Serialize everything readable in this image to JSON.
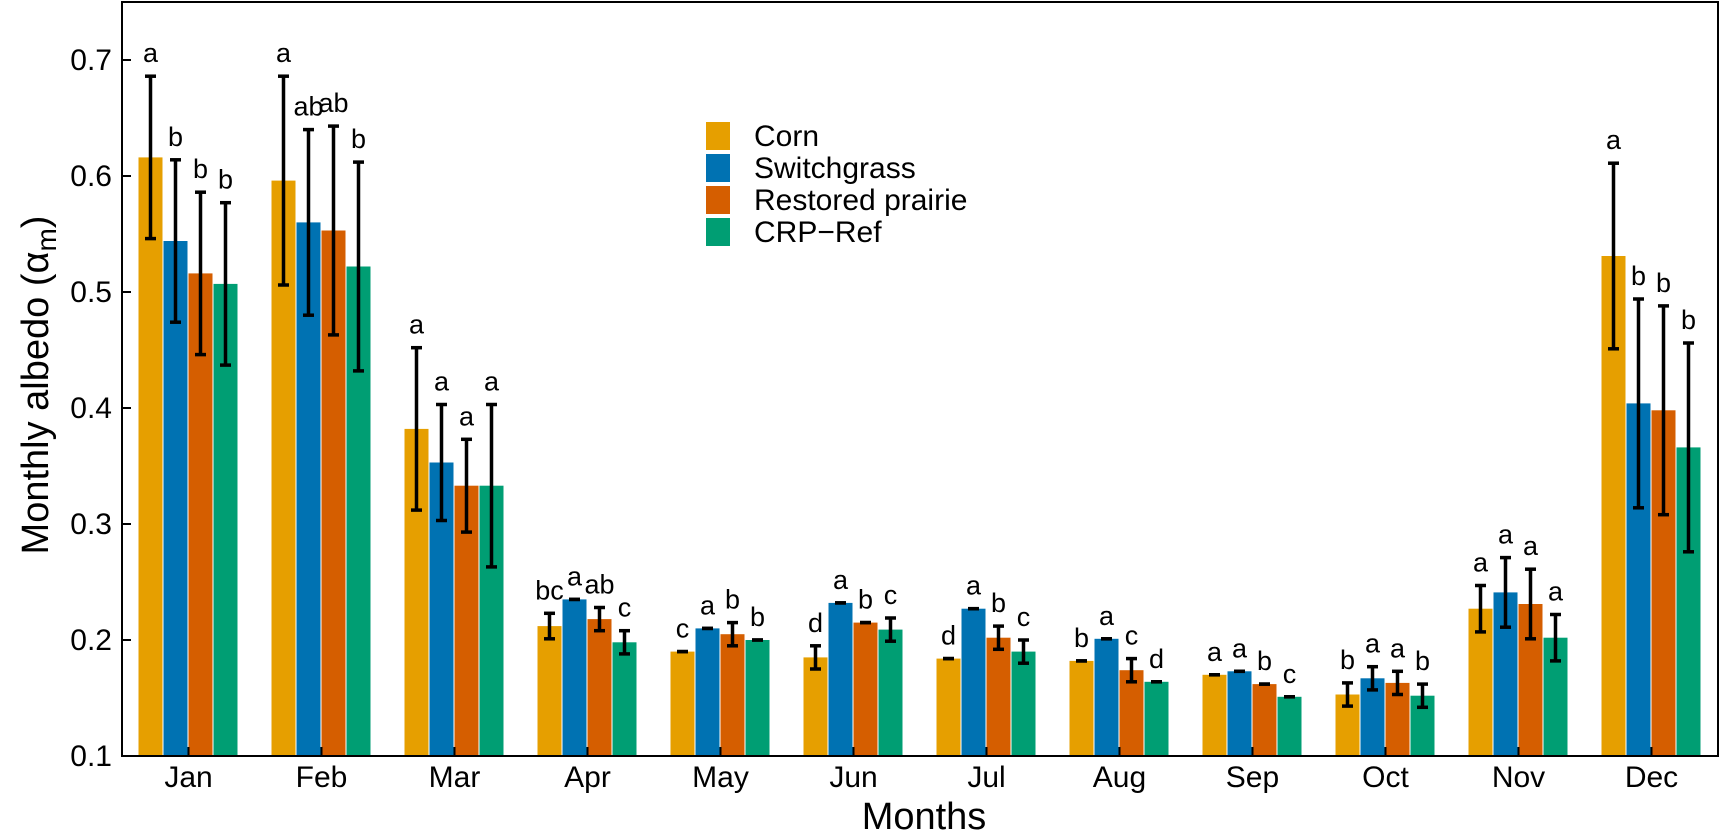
{
  "chart_data": {
    "type": "bar",
    "xlabel": "Months",
    "ylabel": "Monthly albedo (α",
    "ylabel_subscript": "m",
    "ylabel_suffix": ")",
    "ylim": [
      0.1,
      0.75
    ],
    "yticks": [
      "0.1",
      "0.2",
      "0.3",
      "0.4",
      "0.5",
      "0.6",
      "0.7"
    ],
    "grid": false,
    "legend_position": "top-center",
    "categories": [
      "Jan",
      "Feb",
      "Mar",
      "Apr",
      "May",
      "Jun",
      "Jul",
      "Aug",
      "Sep",
      "Oct",
      "Nov",
      "Dec"
    ],
    "series": [
      {
        "name": "Corn",
        "color": "#E69F00",
        "values": [
          0.616,
          0.596,
          0.382,
          0.212,
          0.19,
          0.185,
          0.184,
          0.182,
          0.17,
          0.153,
          0.227,
          0.531
        ],
        "errors": [
          0.07,
          0.09,
          0.07,
          0.011,
          0.0,
          0.01,
          0.0,
          0.0,
          0.0,
          0.01,
          0.02,
          0.08
        ],
        "letters": [
          "a",
          "a",
          "a",
          "bc",
          "c",
          "d",
          "d",
          "b",
          "a",
          "b",
          "a",
          "a"
        ]
      },
      {
        "name": "Switchgrass",
        "color": "#0072B2",
        "values": [
          0.544,
          0.56,
          0.353,
          0.235,
          0.21,
          0.232,
          0.227,
          0.201,
          0.173,
          0.167,
          0.241,
          0.404
        ],
        "errors": [
          0.07,
          0.08,
          0.05,
          0.0,
          0.0,
          0.0,
          0.0,
          0.0,
          0.0,
          0.01,
          0.03,
          0.09
        ],
        "letters": [
          "b",
          "ab",
          "a",
          "a",
          "a",
          "a",
          "a",
          "a",
          "a",
          "a",
          "a",
          "b"
        ]
      },
      {
        "name": "Restored prairie",
        "color": "#D55E00",
        "values": [
          0.516,
          0.553,
          0.333,
          0.218,
          0.205,
          0.215,
          0.202,
          0.174,
          0.162,
          0.163,
          0.231,
          0.398
        ],
        "errors": [
          0.07,
          0.09,
          0.04,
          0.01,
          0.01,
          0.0,
          0.01,
          0.01,
          0.0,
          0.01,
          0.03,
          0.09
        ],
        "letters": [
          "b",
          "ab",
          "a",
          "ab",
          "b",
          "b",
          "b",
          "c",
          "b",
          "a",
          "a",
          "b"
        ]
      },
      {
        "name": "CRP−Ref",
        "color": "#009E73",
        "values": [
          0.507,
          0.522,
          0.333,
          0.198,
          0.2,
          0.209,
          0.19,
          0.164,
          0.151,
          0.152,
          0.202,
          0.366
        ],
        "errors": [
          0.07,
          0.09,
          0.07,
          0.01,
          0.0,
          0.01,
          0.01,
          0.0,
          0.0,
          0.01,
          0.02,
          0.09
        ],
        "letters": [
          "b",
          "b",
          "a",
          "c",
          "b",
          "c",
          "c",
          "d",
          "c",
          "b",
          "a",
          "b"
        ]
      }
    ]
  }
}
